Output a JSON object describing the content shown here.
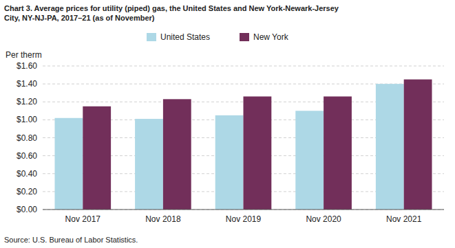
{
  "chart_data": {
    "type": "bar",
    "title": "Chart 3. Average prices for utility (piped) gas, the United States and New York-Newark-Jersey\nCity, NY-NJ-PA, 2017–21 (as of November)",
    "y_label": "Per therm",
    "source": "Source: U.S. Bureau of Labor Statistics.",
    "categories": [
      "Nov 2017",
      "Nov 2018",
      "Nov 2019",
      "Nov 2020",
      "Nov 2021"
    ],
    "series": [
      {
        "name": "United States",
        "color": "#add8e6",
        "values": [
          1.02,
          1.01,
          1.05,
          1.1,
          1.4
        ]
      },
      {
        "name": "New York",
        "color": "#722F5A",
        "values": [
          1.15,
          1.23,
          1.26,
          1.26,
          1.45
        ]
      }
    ],
    "ylim": [
      0.0,
      1.6
    ],
    "yticks": [
      {
        "value": 0.0,
        "label": "$0.00"
      },
      {
        "value": 0.2,
        "label": "$0.20"
      },
      {
        "value": 0.4,
        "label": "$0.40"
      },
      {
        "value": 0.6,
        "label": "$0.60"
      },
      {
        "value": 0.8,
        "label": "$0.80"
      },
      {
        "value": 1.0,
        "label": "$1.00"
      },
      {
        "value": 1.2,
        "label": "$1.20"
      },
      {
        "value": 1.4,
        "label": "$1.40"
      },
      {
        "value": 1.6,
        "label": "$1.60"
      }
    ],
    "grid": true,
    "legend": "top"
  }
}
